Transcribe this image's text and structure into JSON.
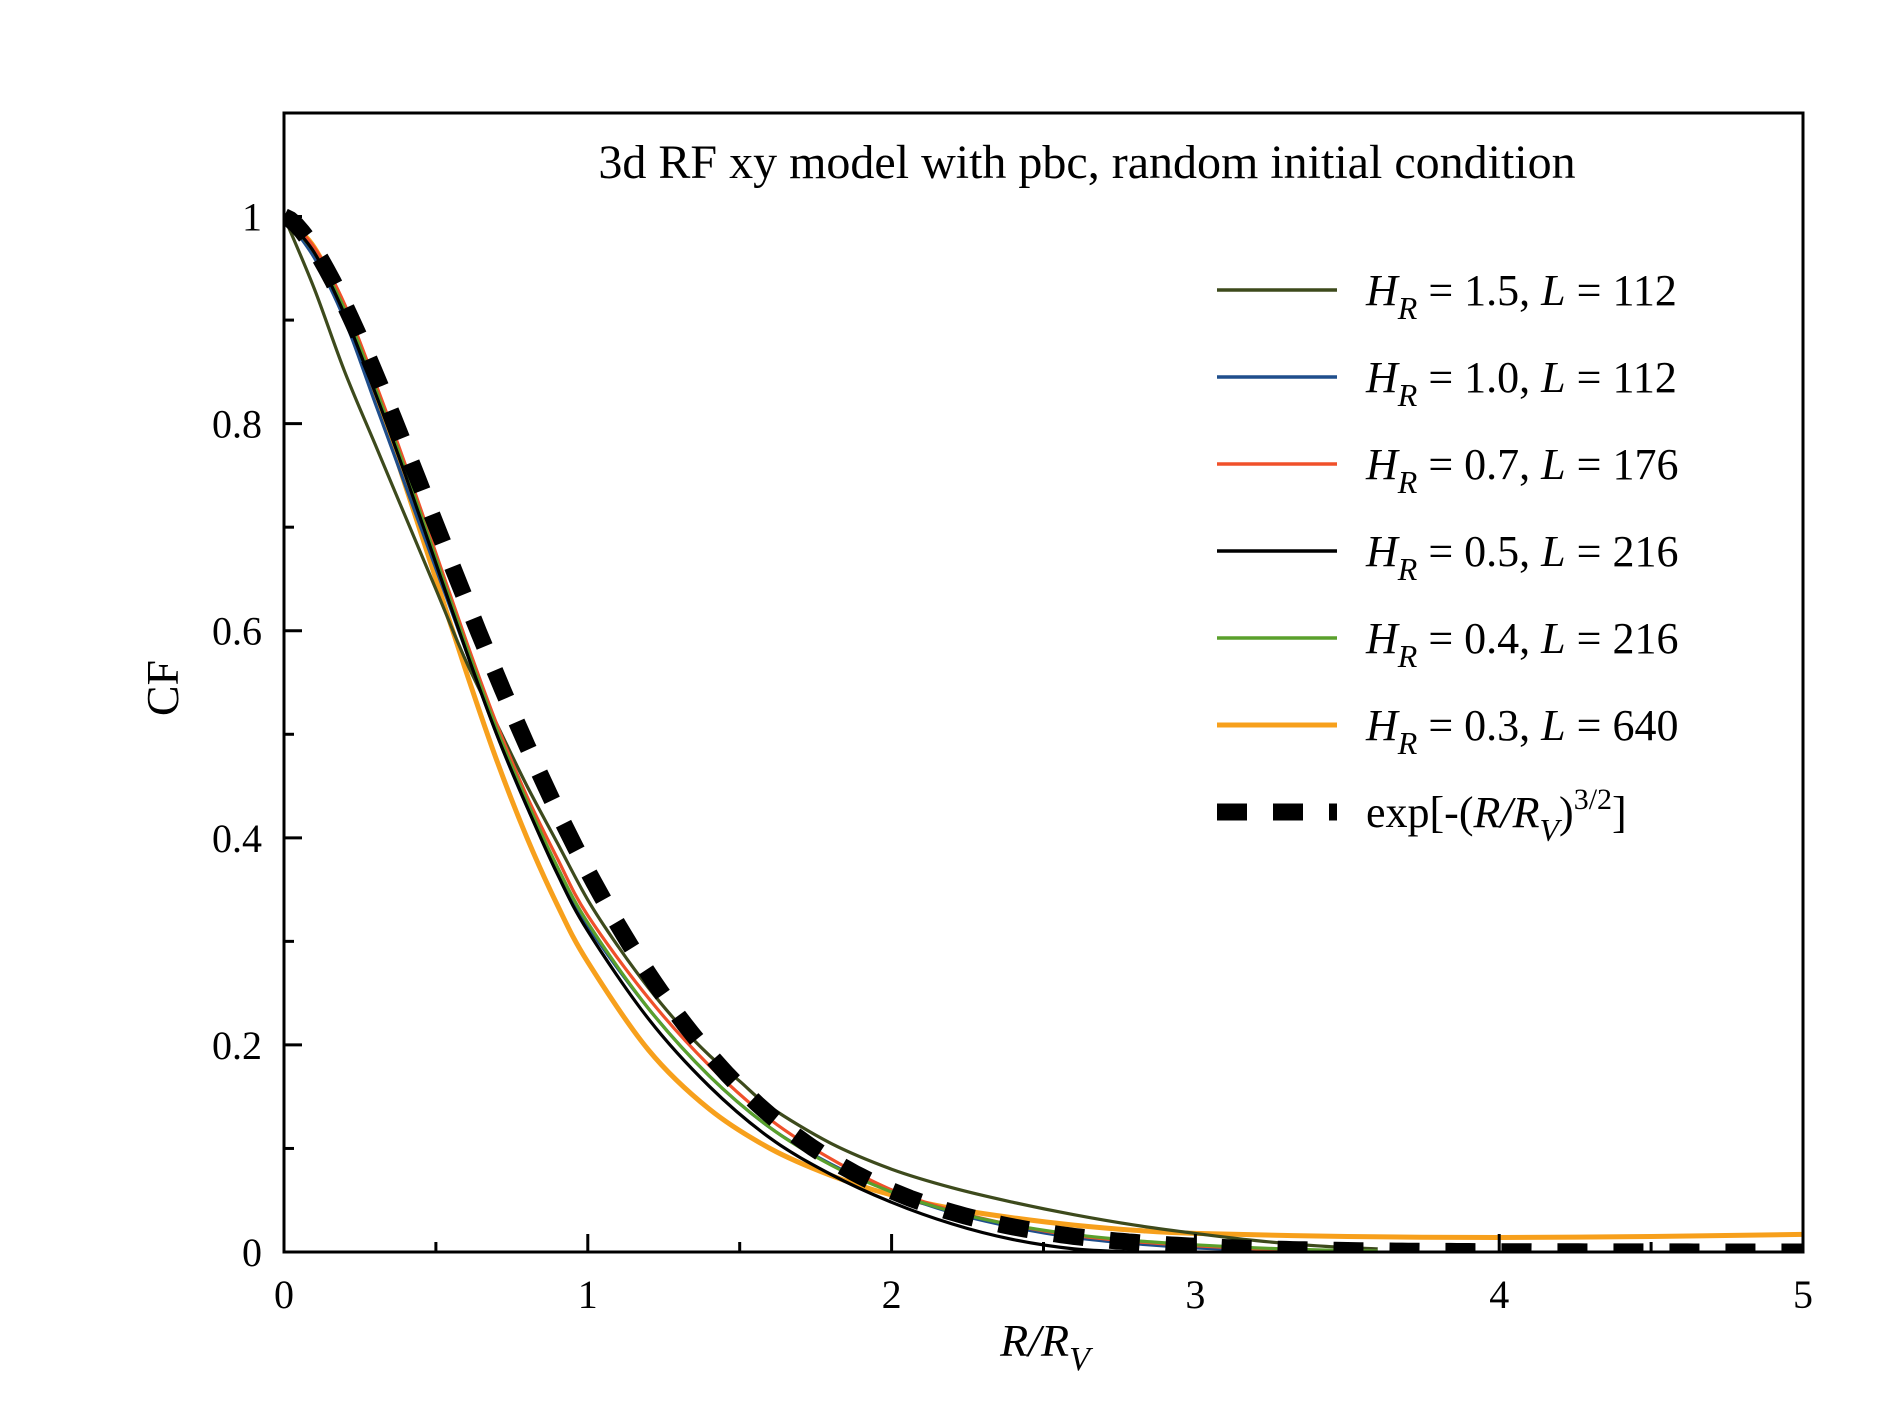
{
  "chart_data": {
    "type": "line",
    "title": "3d RF xy model with pbc, random initial condition",
    "xlabel": {
      "main": "R/R",
      "sub": "V"
    },
    "ylabel": "CF",
    "xlim": [
      0,
      5
    ],
    "ylim": [
      0,
      1.1
    ],
    "x_ticks": [
      0,
      1,
      2,
      3,
      4,
      5
    ],
    "x_tick_labels": [
      "0",
      "1",
      "2",
      "3",
      "4",
      "5"
    ],
    "y_ticks": [
      0,
      0.2,
      0.4,
      0.6,
      0.8,
      1
    ],
    "y_tick_labels": [
      "0",
      "0.2",
      "0.4",
      "0.6",
      "0.8",
      "1"
    ],
    "grid": false,
    "legend_position": "top-right",
    "series": [
      {
        "name": "H_R = 1.5, L = 112",
        "legend": {
          "h": "H",
          "hsub": "R",
          "mid": " = 1.5, ",
          "l": "L",
          "rest": "  = 112"
        },
        "color": "#3d4a1c",
        "x": [
          0,
          0.1,
          0.2,
          0.3,
          0.4,
          0.5,
          0.6,
          0.7,
          0.8,
          0.9,
          1.0,
          1.1,
          1.2,
          1.3,
          1.4,
          1.5,
          1.6,
          1.8,
          2.0,
          2.2,
          2.4,
          2.6,
          2.8,
          3.0,
          3.2,
          3.4,
          3.6
        ],
        "y": [
          1.0,
          0.93,
          0.85,
          0.78,
          0.71,
          0.64,
          0.57,
          0.51,
          0.45,
          0.395,
          0.34,
          0.295,
          0.255,
          0.22,
          0.19,
          0.165,
          0.14,
          0.105,
          0.08,
          0.062,
          0.048,
          0.036,
          0.026,
          0.018,
          0.011,
          0.006,
          0.003
        ]
      },
      {
        "name": "H_R = 1.0, L = 112",
        "legend": {
          "h": "H",
          "hsub": "R",
          "mid": " = 1.0, ",
          "l": "L",
          "rest": "  = 112"
        },
        "color": "#1f4e8c",
        "x": [
          0,
          0.1,
          0.2,
          0.3,
          0.4,
          0.5,
          0.6,
          0.7,
          0.8,
          0.9,
          1.0,
          1.2,
          1.4,
          1.6,
          1.8,
          2.0,
          2.2,
          2.4,
          2.6,
          2.8,
          3.0,
          3.2,
          3.4
        ],
        "y": [
          1.0,
          0.96,
          0.9,
          0.82,
          0.74,
          0.66,
          0.58,
          0.5,
          0.43,
          0.37,
          0.315,
          0.235,
          0.17,
          0.12,
          0.085,
          0.058,
          0.038,
          0.024,
          0.014,
          0.008,
          0.004,
          0.002,
          0.001
        ]
      },
      {
        "name": "H_R = 0.7, L = 176",
        "legend": {
          "h": "H",
          "hsub": "R",
          "mid": " = 0.7, ",
          "l": "L",
          "rest": "  = 176"
        },
        "color": "#f0502a",
        "x": [
          0,
          0.1,
          0.2,
          0.3,
          0.4,
          0.5,
          0.6,
          0.7,
          0.8,
          0.9,
          1.0,
          1.2,
          1.4,
          1.6,
          1.8,
          2.0,
          2.2,
          2.4,
          2.6,
          2.8,
          3.0,
          3.2,
          3.4
        ],
        "y": [
          1.0,
          0.97,
          0.915,
          0.84,
          0.76,
          0.675,
          0.59,
          0.51,
          0.44,
          0.38,
          0.325,
          0.245,
          0.18,
          0.128,
          0.09,
          0.06,
          0.04,
          0.026,
          0.016,
          0.01,
          0.006,
          0.003,
          0.001
        ]
      },
      {
        "name": "H_R = 0.5, L = 216",
        "legend": {
          "h": "H",
          "hsub": "R",
          "mid": " = 0.5, ",
          "l": "L",
          "rest": "  = 216"
        },
        "color": "#000000",
        "x": [
          0,
          0.1,
          0.2,
          0.3,
          0.4,
          0.5,
          0.6,
          0.7,
          0.8,
          0.9,
          1.0,
          1.2,
          1.4,
          1.6,
          1.8,
          2.0,
          2.2,
          2.4,
          2.6,
          2.8
        ],
        "y": [
          1.0,
          0.965,
          0.905,
          0.83,
          0.75,
          0.665,
          0.58,
          0.5,
          0.43,
          0.365,
          0.31,
          0.225,
          0.16,
          0.11,
          0.075,
          0.048,
          0.027,
          0.012,
          0.003,
          0.0
        ]
      },
      {
        "name": "H_R = 0.4, L = 216",
        "legend": {
          "h": "H",
          "hsub": "R",
          "mid": " = 0.4, ",
          "l": "L",
          "rest": "  = 216"
        },
        "color": "#5aa02c",
        "x": [
          0,
          0.1,
          0.2,
          0.3,
          0.4,
          0.5,
          0.6,
          0.7,
          0.8,
          0.9,
          1.0,
          1.2,
          1.4,
          1.6,
          1.8,
          2.0,
          2.2,
          2.4,
          2.6,
          2.8,
          3.0,
          3.2,
          3.4,
          3.6
        ],
        "y": [
          1.0,
          0.965,
          0.91,
          0.835,
          0.755,
          0.67,
          0.585,
          0.505,
          0.435,
          0.372,
          0.318,
          0.235,
          0.17,
          0.12,
          0.084,
          0.058,
          0.039,
          0.026,
          0.017,
          0.011,
          0.007,
          0.004,
          0.002,
          0.001
        ]
      },
      {
        "name": "H_R = 0.3, L = 640",
        "legend": {
          "h": "H",
          "hsub": "R",
          "mid": " = 0.3, ",
          "l": "L",
          "rest": "  = 640"
        },
        "color": "#f7a01c",
        "x": [
          0,
          0.1,
          0.2,
          0.3,
          0.4,
          0.5,
          0.6,
          0.7,
          0.8,
          0.9,
          1.0,
          1.2,
          1.4,
          1.6,
          1.8,
          2.0,
          2.2,
          2.4,
          2.6,
          2.8,
          3.0,
          3.5,
          4.0,
          4.5,
          5.0
        ],
        "y": [
          1.0,
          0.97,
          0.91,
          0.83,
          0.74,
          0.65,
          0.56,
          0.475,
          0.4,
          0.335,
          0.28,
          0.195,
          0.138,
          0.1,
          0.074,
          0.055,
          0.042,
          0.033,
          0.026,
          0.021,
          0.018,
          0.015,
          0.014,
          0.015,
          0.017
        ]
      },
      {
        "name": "exp[-(R/R_V)^(3/2)]",
        "legend": {
          "pre": "exp[-(",
          "r": "R/R",
          "rsub": "V",
          "close": ")",
          "sup": "3/2",
          "end": "]"
        },
        "color": "#000000",
        "dashed": true,
        "function": "stretched_exp_1.5"
      }
    ]
  }
}
